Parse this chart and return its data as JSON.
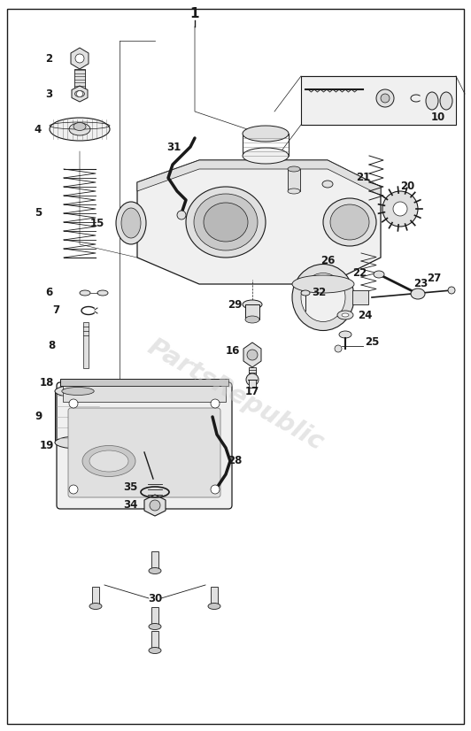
{
  "background_color": "#ffffff",
  "border_color": "#1a1a1a",
  "watermark_text": "PartsRepublic",
  "watermark_color": "#cccccc",
  "fig_width": 5.32,
  "fig_height": 8.26,
  "dpi": 100
}
